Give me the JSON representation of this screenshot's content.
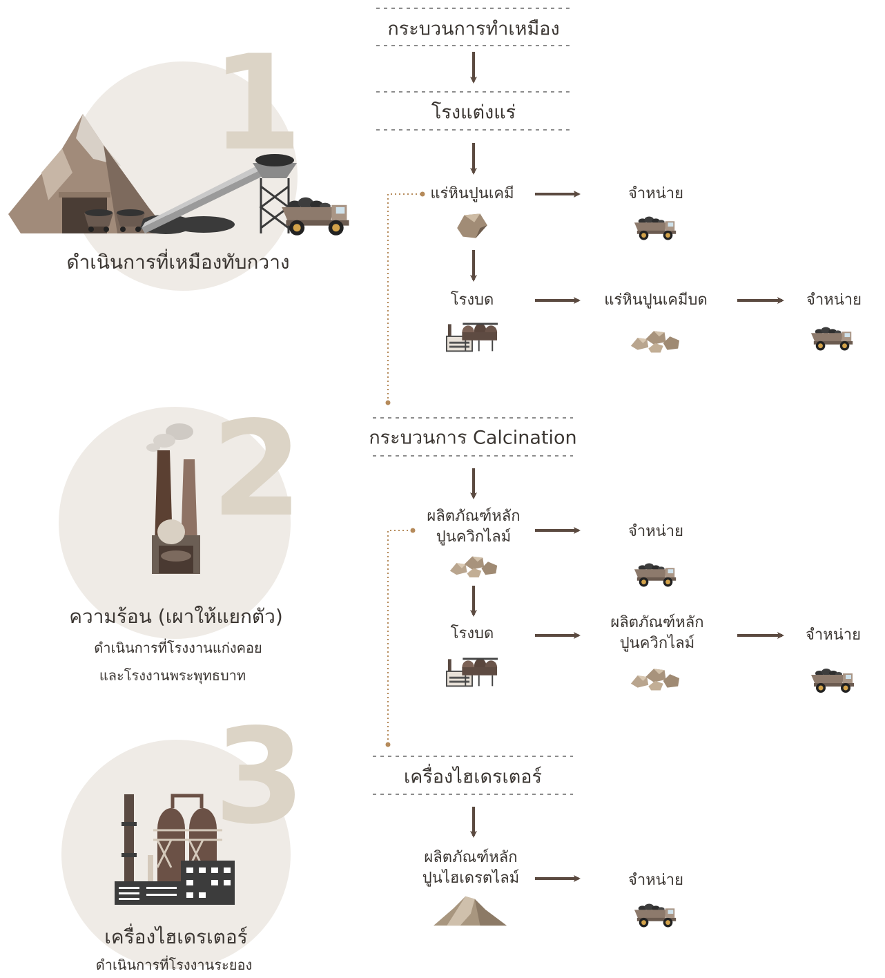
{
  "stages": [
    {
      "number": 1,
      "title": "ดำเนินการที่เหมืองทับกวาง"
    },
    {
      "number": 2,
      "title": "ความร้อน (เผาให้แยกตัว)",
      "subtitle_lines": [
        "ดำเนินการที่โรงงานแก่งคอย",
        "และโรงงานพระพุทธบาท"
      ]
    },
    {
      "number": 3,
      "title": "เครื่องไฮเดรเตอร์",
      "subtitle_lines": [
        "ดำเนินการที่โรงงานระยอง"
      ]
    }
  ],
  "flow": {
    "headers": [
      "กระบวนการทำเหมือง",
      "โรงแต่งแร่",
      "กระบวนการ Calcination",
      "เครื่องไฮเดรเตอร์"
    ],
    "nodes": [
      {
        "lines": [
          "แร่หินปูนเคมี"
        ]
      },
      {
        "lines": [
          "จำหน่าย"
        ]
      },
      {
        "lines": [
          "โรงบด"
        ]
      },
      {
        "lines": [
          "แร่หินปูนเคมีบด"
        ]
      },
      {
        "lines": [
          "จำหน่าย"
        ]
      },
      {
        "lines": [
          "ผลิตภัณฑ์หลัก",
          "ปูนควิกไลม์"
        ]
      },
      {
        "lines": [
          "จำหน่าย"
        ]
      },
      {
        "lines": [
          "โรงบด"
        ]
      },
      {
        "lines": [
          "ผลิตภัณฑ์หลัก",
          "ปูนควิกไลม์"
        ]
      },
      {
        "lines": [
          "จำหน่าย"
        ]
      },
      {
        "lines": [
          "ผลิตภัณฑ์หลัก",
          "ปูนไฮเดรตไลม์"
        ]
      },
      {
        "lines": [
          "จำหน่าย"
        ]
      }
    ]
  }
}
